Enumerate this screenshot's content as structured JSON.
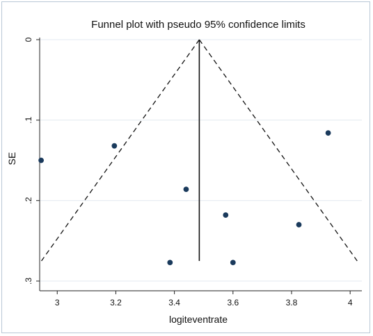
{
  "chart_data": {
    "type": "scatter",
    "title": "Funnel plot with pseudo 95% confidence limits",
    "xlabel": "logiteventrate",
    "ylabel": "SE",
    "xlim": [
      2.94,
      4.04
    ],
    "ylim": [
      0,
      0.3
    ],
    "y_reversed": true,
    "x_ticks": [
      3,
      3.2,
      3.4,
      3.6,
      3.8,
      4
    ],
    "x_tick_labels": [
      "3",
      "3.2",
      "3.4",
      "3.6",
      "3.8",
      "4"
    ],
    "y_ticks": [
      0,
      0.1,
      0.2,
      0.3
    ],
    "y_tick_labels": [
      "0",
      ".1",
      ".2",
      ".3"
    ],
    "grid": "horizontal",
    "pooled_estimate": 3.485,
    "se_max": 0.275,
    "points": [
      {
        "x": 2.945,
        "y": 0.15
      },
      {
        "x": 3.195,
        "y": 0.132
      },
      {
        "x": 3.925,
        "y": 0.116
      },
      {
        "x": 3.44,
        "y": 0.186
      },
      {
        "x": 3.575,
        "y": 0.218
      },
      {
        "x": 3.825,
        "y": 0.23
      },
      {
        "x": 3.385,
        "y": 0.277
      },
      {
        "x": 3.6,
        "y": 0.277
      }
    ],
    "colors": {
      "marker": "#1a3a5c",
      "grid": "#e3eaf0",
      "axis": "#222222",
      "frame": "#b8c8d6"
    }
  }
}
